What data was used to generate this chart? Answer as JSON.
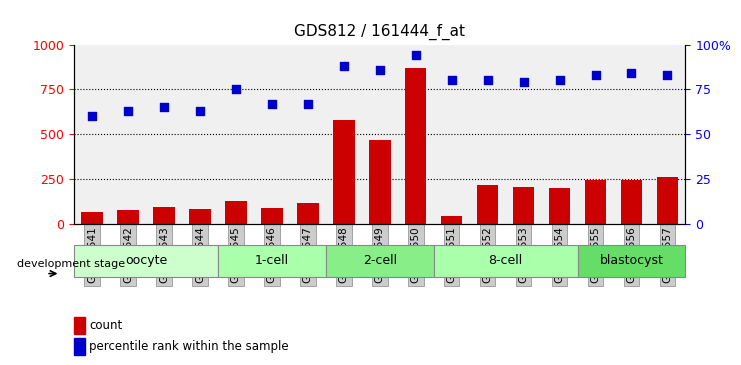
{
  "title": "GDS812 / 161444_f_at",
  "samples": [
    "GSM22541",
    "GSM22542",
    "GSM22543",
    "GSM22544",
    "GSM22545",
    "GSM22546",
    "GSM22547",
    "GSM22548",
    "GSM22549",
    "GSM22550",
    "GSM22551",
    "GSM22552",
    "GSM22553",
    "GSM22554",
    "GSM22555",
    "GSM22556",
    "GSM22557"
  ],
  "counts": [
    65,
    80,
    95,
    85,
    130,
    90,
    115,
    580,
    465,
    870,
    45,
    215,
    205,
    200,
    245,
    245,
    260
  ],
  "percentiles": [
    60,
    63,
    65,
    63,
    75,
    67,
    67,
    88,
    86,
    94,
    80,
    80,
    79,
    80,
    83,
    84,
    83
  ],
  "stages": [
    {
      "label": "oocyte",
      "start": 0,
      "end": 3,
      "color": "#ccffcc"
    },
    {
      "label": "1-cell",
      "start": 4,
      "end": 6,
      "color": "#aaffaa"
    },
    {
      "label": "2-cell",
      "start": 7,
      "end": 9,
      "color": "#88ee88"
    },
    {
      "label": "8-cell",
      "start": 10,
      "end": 13,
      "color": "#aaffaa"
    },
    {
      "label": "blastocyst",
      "start": 14,
      "end": 16,
      "color": "#66dd66"
    }
  ],
  "bar_color": "#cc0000",
  "dot_color": "#0000cc",
  "ylim_left": [
    0,
    1000
  ],
  "ylim_right": [
    0,
    100
  ],
  "yticks_left": [
    0,
    250,
    500,
    750,
    1000
  ],
  "yticks_right": [
    0,
    25,
    50,
    75,
    100
  ],
  "ytick_labels_right": [
    "0",
    "25",
    "50",
    "75",
    "100%"
  ],
  "background_color": "#ffffff",
  "axis_bg": "#f0f0f0",
  "grid_color": "#000000",
  "legend_count_label": "count",
  "legend_pct_label": "percentile rank within the sample",
  "dev_stage_label": "development stage"
}
